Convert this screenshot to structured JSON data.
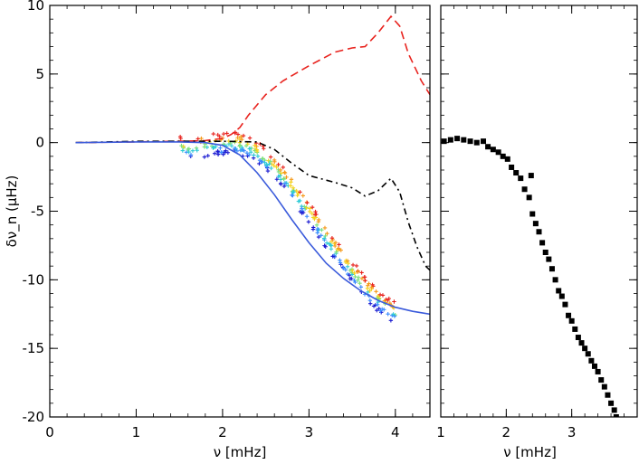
{
  "chart_data": [
    {
      "type": "line",
      "panel": "left",
      "xlabel": "ν [mHz]",
      "ylabel": "δν_n (μHz)",
      "xlim": [
        0,
        4.4
      ],
      "ylim": [
        -20,
        10
      ],
      "xticks": [
        0,
        1,
        2,
        3,
        4
      ],
      "yticks": [
        10,
        5,
        0,
        -5,
        -10,
        -15,
        -20
      ],
      "series": [
        {
          "name": "red-dashed",
          "style": "dashed",
          "color": "#e8231e",
          "x": [
            0.3,
            1.0,
            1.5,
            1.8,
            2.0,
            2.1,
            2.2,
            2.3,
            2.5,
            2.7,
            3.0,
            3.3,
            3.5,
            3.65,
            3.8,
            3.95,
            4.05,
            4.15,
            4.3,
            4.4
          ],
          "y": [
            0.0,
            0.05,
            0.1,
            0.15,
            0.3,
            0.6,
            1.1,
            2.0,
            3.5,
            4.5,
            5.6,
            6.6,
            6.9,
            7.0,
            8.0,
            9.2,
            8.5,
            6.5,
            4.5,
            3.5
          ]
        },
        {
          "name": "black-dashdot",
          "style": "dashdot",
          "color": "#000000",
          "x": [
            0.3,
            1.0,
            2.0,
            2.4,
            2.6,
            2.8,
            3.0,
            3.3,
            3.5,
            3.65,
            3.8,
            3.95,
            4.05,
            4.15,
            4.25,
            4.35,
            4.4
          ],
          "y": [
            0.0,
            0.1,
            0.1,
            0.05,
            -0.5,
            -1.5,
            -2.4,
            -2.9,
            -3.3,
            -3.9,
            -3.5,
            -2.6,
            -3.6,
            -5.8,
            -7.6,
            -9.0,
            -9.3
          ]
        },
        {
          "name": "blue-solid",
          "style": "solid",
          "color": "#3b5bdb",
          "x": [
            0.3,
            1.0,
            1.5,
            1.8,
            2.0,
            2.2,
            2.4,
            2.6,
            2.8,
            3.0,
            3.2,
            3.4,
            3.6,
            3.8,
            4.0,
            4.2,
            4.4
          ],
          "y": [
            0.0,
            0.05,
            0.05,
            0.0,
            -0.2,
            -0.9,
            -2.2,
            -3.8,
            -5.6,
            -7.3,
            -8.8,
            -9.9,
            -10.8,
            -11.5,
            -12.0,
            -12.3,
            -12.5
          ]
        },
        {
          "name": "scatter-band",
          "style": "crosses",
          "colors": [
            "#1a1ad1",
            "#3a8cff",
            "#2ecbd6",
            "#7be07b",
            "#f5d21b",
            "#f59a1b",
            "#e8231e"
          ],
          "x": [
            1.5,
            1.7,
            1.9,
            2.0,
            2.1,
            2.2,
            2.3,
            2.4,
            2.5,
            2.6,
            2.7,
            2.8,
            2.9,
            3.0,
            3.1,
            3.2,
            3.3,
            3.4,
            3.5,
            3.6,
            3.7,
            3.8,
            3.9,
            4.0
          ],
          "y": [
            -0.4,
            -0.3,
            -0.15,
            -0.1,
            0.0,
            -0.1,
            -0.3,
            -0.7,
            -1.2,
            -1.8,
            -2.5,
            -3.3,
            -4.2,
            -5.1,
            -6.0,
            -6.9,
            -7.8,
            -8.6,
            -9.4,
            -10.2,
            -10.9,
            -11.5,
            -12.0,
            -12.4
          ]
        }
      ]
    },
    {
      "type": "scatter",
      "panel": "right",
      "xlabel": "ν [mHz]",
      "xlim": [
        1,
        4
      ],
      "ylim": [
        -20,
        10
      ],
      "xticks": [
        1,
        2,
        3
      ],
      "marker": "filled-square",
      "color": "#000000",
      "x": [
        1.05,
        1.15,
        1.25,
        1.35,
        1.45,
        1.55,
        1.65,
        1.72,
        1.8,
        1.88,
        1.95,
        2.02,
        2.08,
        2.15,
        2.22,
        2.28,
        2.35,
        2.38,
        2.4,
        2.45,
        2.5,
        2.55,
        2.6,
        2.65,
        2.7,
        2.75,
        2.8,
        2.85,
        2.9,
        2.95,
        3.0,
        3.05,
        3.1,
        3.15,
        3.2,
        3.25,
        3.3,
        3.35,
        3.4,
        3.45,
        3.5,
        3.55,
        3.6,
        3.65,
        3.68
      ],
      "y": [
        0.1,
        0.2,
        0.3,
        0.2,
        0.1,
        0.0,
        0.1,
        -0.3,
        -0.5,
        -0.7,
        -1.0,
        -1.2,
        -1.8,
        -2.2,
        -2.6,
        -3.4,
        -4.0,
        -2.4,
        -5.2,
        -5.9,
        -6.5,
        -7.3,
        -8.0,
        -8.5,
        -9.2,
        -10.0,
        -10.8,
        -11.2,
        -11.8,
        -12.6,
        -13.0,
        -13.6,
        -14.2,
        -14.6,
        -15.0,
        -15.4,
        -15.9,
        -16.3,
        -16.7,
        -17.3,
        -17.8,
        -18.4,
        -19.0,
        -19.5,
        -20.0
      ]
    }
  ]
}
